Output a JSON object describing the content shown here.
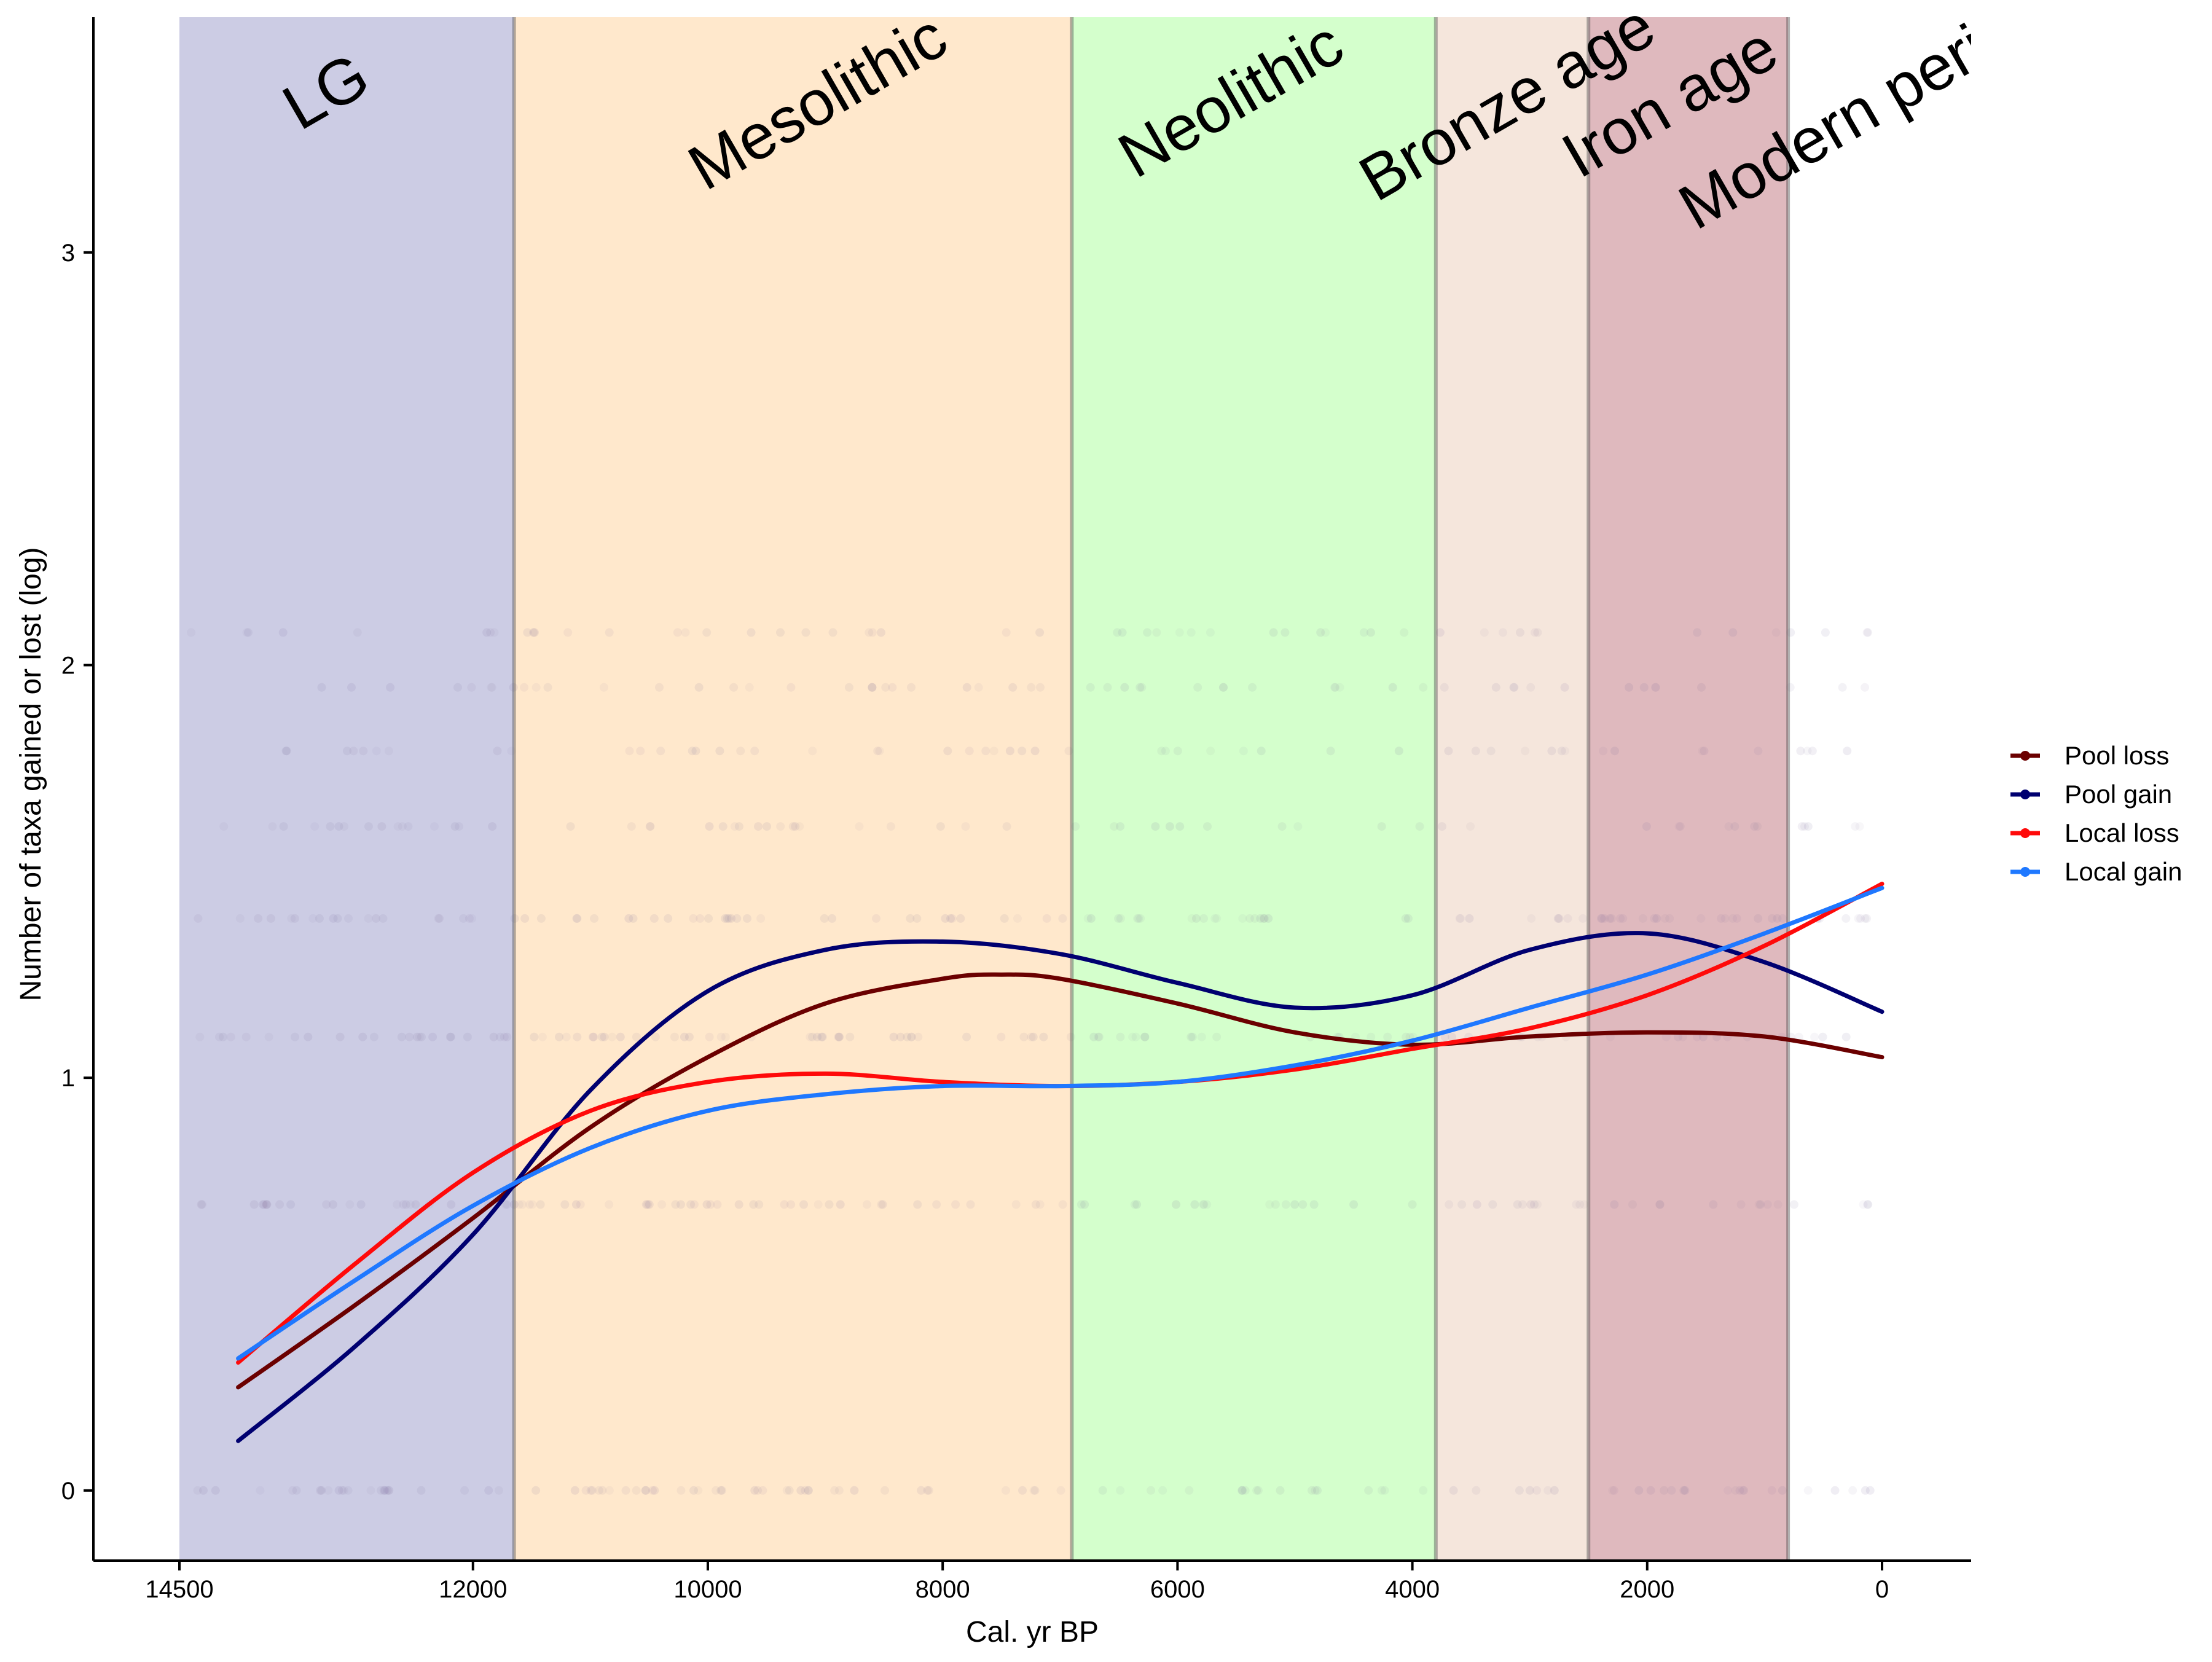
{
  "chart_data": {
    "type": "line",
    "title": "",
    "xlabel": "Cal. yr BP",
    "ylabel": "Number of taxa gained or lost (log)",
    "xlim": [
      14500,
      0
    ],
    "x_reversed": true,
    "ylim": [
      -0.17,
      3.57
    ],
    "x_ticks": [
      14500,
      12000,
      10000,
      8000,
      6000,
      4000,
      2000,
      0
    ],
    "y_ticks": [
      0,
      1,
      2,
      3
    ],
    "grid": false,
    "legend_position": "right",
    "periods": [
      {
        "label": "LG",
        "start": 14500,
        "end": 11650,
        "color": "#cccce4"
      },
      {
        "label": "Mesolithic",
        "start": 11650,
        "end": 6900,
        "color": "#ffe8cc"
      },
      {
        "label": "Neolithic",
        "start": 6900,
        "end": 3800,
        "color": "#d4ffcc"
      },
      {
        "label": "Bronze age",
        "start": 3800,
        "end": 2500,
        "color": "#f5e6dc"
      },
      {
        "label": "Iron age",
        "start": 2500,
        "end": 800,
        "color": "#dfb9be"
      },
      {
        "label": "Modern period",
        "start": 800,
        "end": 0,
        "color": "#ffffff"
      }
    ],
    "series": [
      {
        "name": "Pool loss",
        "color": "#6b0000",
        "x": [
          14000,
          13000,
          12000,
          11000,
          10000,
          9000,
          8000,
          7500,
          7000,
          6000,
          5000,
          4000,
          3000,
          2000,
          1000,
          0
        ],
        "y": [
          0.25,
          0.45,
          0.66,
          0.88,
          1.05,
          1.18,
          1.24,
          1.25,
          1.24,
          1.18,
          1.11,
          1.08,
          1.1,
          1.11,
          1.1,
          1.05
        ]
      },
      {
        "name": "Pool gain",
        "color": "#000070",
        "x": [
          14000,
          13000,
          12000,
          11000,
          10000,
          9000,
          8000,
          7000,
          6000,
          5000,
          4000,
          3000,
          2000,
          1000,
          0
        ],
        "y": [
          0.12,
          0.35,
          0.62,
          0.97,
          1.21,
          1.31,
          1.33,
          1.3,
          1.23,
          1.17,
          1.2,
          1.31,
          1.35,
          1.28,
          1.16
        ]
      },
      {
        "name": "Local loss",
        "color": "#ff0a0a",
        "x": [
          14000,
          13000,
          12000,
          11000,
          10000,
          9000,
          8000,
          7000,
          6000,
          5000,
          4000,
          3000,
          2000,
          1000,
          0
        ],
        "y": [
          0.31,
          0.55,
          0.77,
          0.92,
          0.99,
          1.01,
          0.99,
          0.98,
          0.99,
          1.02,
          1.07,
          1.12,
          1.2,
          1.32,
          1.47
        ]
      },
      {
        "name": "Local gain",
        "color": "#1f78ff",
        "x": [
          14000,
          13000,
          12000,
          11000,
          10000,
          9000,
          8000,
          7000,
          6000,
          5000,
          4000,
          3000,
          2000,
          1000,
          0
        ],
        "y": [
          0.32,
          0.51,
          0.69,
          0.83,
          0.92,
          0.96,
          0.98,
          0.98,
          0.99,
          1.03,
          1.09,
          1.17,
          1.25,
          1.35,
          1.46
        ]
      }
    ]
  }
}
